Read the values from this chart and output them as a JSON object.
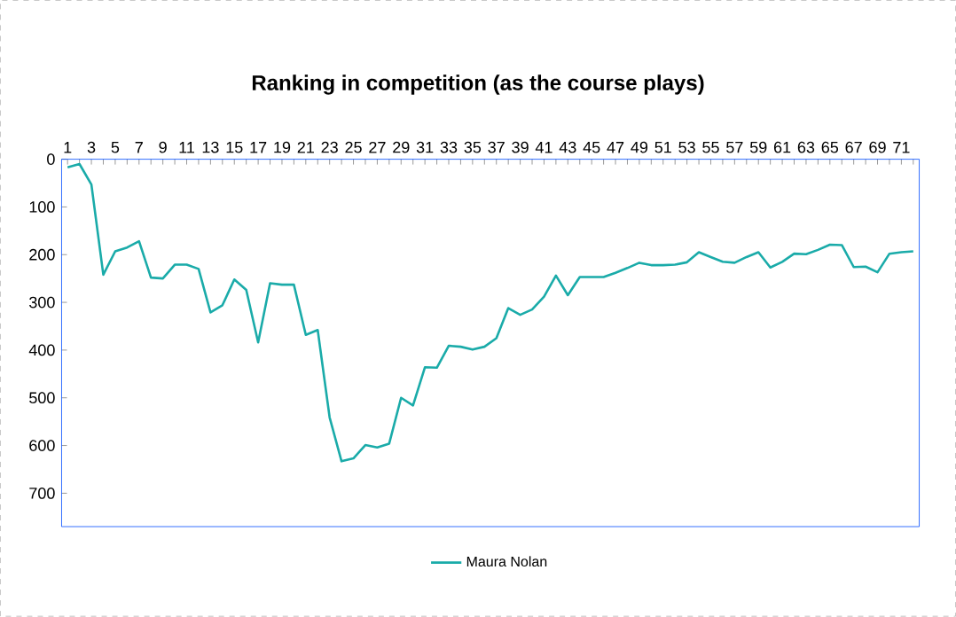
{
  "chart_data": {
    "type": "line",
    "title": "Ranking in competition (as the course plays)",
    "categories": [
      "1",
      null,
      "3",
      null,
      "5",
      null,
      "7",
      null,
      "9",
      null,
      "11",
      null,
      "13",
      null,
      "15",
      null,
      "17",
      null,
      "19",
      null,
      "21",
      null,
      "23",
      null,
      "25",
      null,
      "27",
      null,
      "29",
      null,
      "31",
      null,
      "33",
      null,
      "35",
      null,
      "37",
      null,
      "39",
      null,
      "41",
      null,
      "43",
      null,
      "45",
      null,
      "47",
      null,
      "49",
      null,
      "51",
      null,
      "53",
      null,
      "55",
      null,
      "57",
      null,
      "59",
      null,
      "61",
      null,
      "63",
      null,
      "65",
      null,
      "67",
      null,
      "69",
      null,
      "71",
      null
    ],
    "series": [
      {
        "name": "Maura Nolan",
        "color": "#1aaba9",
        "values": [
          17,
          10,
          53,
          242,
          193,
          185,
          172,
          248,
          250,
          221,
          221,
          230,
          321,
          306,
          252,
          274,
          384,
          260,
          263,
          263,
          368,
          358,
          541,
          633,
          627,
          599,
          604,
          596,
          500,
          516,
          436,
          437,
          391,
          393,
          399,
          393,
          375,
          312,
          326,
          315,
          288,
          244,
          285,
          247,
          247,
          247,
          238,
          228,
          217,
          222,
          222,
          221,
          216,
          195,
          205,
          215,
          217,
          205,
          195,
          227,
          215,
          198,
          199,
          190,
          179,
          180,
          226,
          225,
          237,
          198,
          195,
          193
        ]
      }
    ],
    "ylim": [
      770,
      0
    ],
    "yticks": [
      0,
      100,
      200,
      300,
      400,
      500,
      600,
      700
    ],
    "legend": "bottom",
    "marker": "none",
    "line_style": "solid"
  }
}
